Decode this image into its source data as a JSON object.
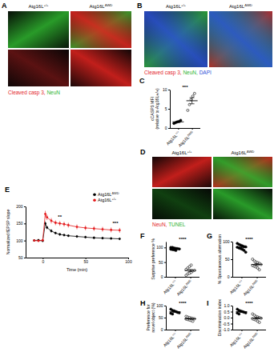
{
  "image_panels": [
    {
      "label": "A",
      "columns": [
        "Atg16L+/+",
        "Atg16LΔWD"
      ],
      "rows": 2,
      "caption": [
        {
          "text": "Cleaved casp 3, ",
          "color": "#e3231f"
        },
        {
          "text": "NeuN",
          "color": "#2fb52f"
        }
      ]
    },
    {
      "label": "B",
      "columns": [
        "Atg16L+/+",
        "Atg16LΔWD"
      ],
      "rows": 1,
      "caption": [
        {
          "text": "Cleaved casp 3, ",
          "color": "#e3231f"
        },
        {
          "text": "NeuN, ",
          "color": "#2fb52f"
        },
        {
          "text": "DAPI",
          "color": "#2b4fd8"
        }
      ]
    },
    {
      "label": "D",
      "columns": [
        "Atg16L+/+",
        "Atg16LΔWD"
      ],
      "rows": 2,
      "caption": [
        {
          "text": "NeuN, ",
          "color": "#e3231f"
        },
        {
          "text": "TUNEL",
          "color": "#2fb52f"
        }
      ]
    }
  ],
  "chart_data": [
    {
      "title": "C",
      "type": "dot",
      "ylabel": [
        "cCASP3 MFI",
        "(relative to Atg16L+/+)"
      ],
      "ylim": [
        0,
        10
      ],
      "yticks": [
        0,
        5,
        10
      ],
      "annotation": "***",
      "series": [
        {
          "name": "Atg16L+/+",
          "color": "#000000",
          "marker": "filled",
          "values": [
            1.2,
            1.4,
            1.6,
            1.7,
            2.0
          ],
          "mean": 1.6,
          "error": 0.15
        },
        {
          "name": "Atg16LΔWD",
          "color": "#000000",
          "marker": "open",
          "values": [
            4.6,
            6.1,
            7.4,
            8.3,
            9.0
          ],
          "mean": 7.1,
          "error": 0.8
        }
      ]
    },
    {
      "title": "E",
      "type": "line",
      "xlabel": "Time (min)",
      "ylabel": "Normalized fEPSP slope",
      "xlim": [
        -20,
        100
      ],
      "xticks": [
        0,
        50,
        100
      ],
      "ylim": [
        50,
        200
      ],
      "yticks": [
        50,
        100,
        150,
        200
      ],
      "legend": "top-right",
      "marker": "circle",
      "x": [
        -10,
        -5,
        0,
        3,
        5,
        10,
        15,
        20,
        25,
        30,
        40,
        50,
        60,
        70,
        80,
        90
      ],
      "series": [
        {
          "name": "Atg16LΔWD",
          "color": "#000000",
          "values": [
            100,
            101,
            99,
            150,
            138,
            128,
            122,
            118,
            116,
            114,
            112,
            110,
            108,
            107,
            106,
            105
          ],
          "errors": [
            3,
            3,
            3,
            6,
            5,
            5,
            4,
            4,
            4,
            4,
            4,
            4,
            4,
            4,
            4,
            4
          ]
        },
        {
          "name": "Atg16L+/+",
          "color": "#e41a1c",
          "values": [
            100,
            99,
            101,
            178,
            168,
            158,
            152,
            150,
            148,
            145,
            140,
            137,
            135,
            133,
            131,
            130
          ],
          "errors": [
            3,
            3,
            3,
            9,
            8,
            8,
            7,
            7,
            7,
            7,
            7,
            7,
            7,
            7,
            7,
            7
          ]
        }
      ],
      "annotations": [
        {
          "text": "**",
          "x": 20,
          "y": 165
        },
        {
          "text": "***",
          "x": 85,
          "y": 145
        }
      ]
    },
    {
      "title": "F",
      "type": "dot",
      "ylabel": "Surprise preference %",
      "ylim": [
        0,
        120
      ],
      "yticks": [
        0,
        50,
        100
      ],
      "annotation": "****",
      "series": [
        {
          "name": "Atg16L+/+",
          "color": "#000000",
          "marker": "filled",
          "values": [
            100,
            100,
            98,
            97,
            96,
            95,
            94,
            93,
            92,
            90
          ],
          "mean": 95.5,
          "error": 1.0
        },
        {
          "name": "Atg16LΔWD",
          "color": "#000000",
          "marker": "open",
          "values": [
            5,
            10,
            12,
            15,
            20,
            22,
            25,
            30,
            35,
            40
          ],
          "mean": 21.4,
          "error": 3.5
        }
      ]
    },
    {
      "title": "G",
      "type": "dot",
      "ylabel": "% Spontaneous alternation",
      "ylim": [
        0,
        100
      ],
      "yticks": [
        0,
        50,
        100
      ],
      "annotation": "****",
      "series": [
        {
          "name": "Atg16L+/+",
          "color": "#000000",
          "marker": "filled",
          "values": [
            95,
            92,
            90,
            88,
            86,
            85,
            84,
            82,
            80,
            78,
            75,
            70
          ],
          "mean": 83.8,
          "error": 2.0
        },
        {
          "name": "Atg16LΔWD",
          "color": "#000000",
          "marker": "open",
          "values": [
            50,
            45,
            42,
            40,
            38,
            35,
            32,
            30,
            28,
            25,
            20
          ],
          "mean": 35.0,
          "error": 2.7
        }
      ]
    },
    {
      "title": "H",
      "type": "dot",
      "ylabel": [
        "Preference for",
        "novel object (%)"
      ],
      "ylim": [
        0,
        100
      ],
      "yticks": [
        0,
        50,
        100
      ],
      "annotation": "****",
      "series": [
        {
          "name": "Atg16L+/+",
          "color": "#000000",
          "marker": "filled",
          "values": [
            85,
            80,
            78,
            75,
            72,
            70,
            68,
            65
          ],
          "mean": 74.1,
          "error": 2.3
        },
        {
          "name": "Atg16LΔWD",
          "color": "#000000",
          "marker": "open",
          "values": [
            55,
            52,
            50,
            48,
            46,
            45,
            44,
            42,
            40,
            38,
            35
          ],
          "mean": 45.0,
          "error": 1.8
        }
      ]
    },
    {
      "title": "I",
      "type": "dot",
      "ylabel": "Discrimination index",
      "ylim": [
        -1,
        1
      ],
      "yticks": [
        {
          "value": -1,
          "label": "-1.0"
        },
        {
          "value": -0.5,
          "label": "-0.5"
        },
        {
          "value": 0,
          "label": "0.0"
        },
        {
          "value": 0.5,
          "label": "0.5"
        },
        {
          "value": 1,
          "label": "1.0"
        }
      ],
      "annotation": "****",
      "series": [
        {
          "name": "Atg16L+/+",
          "color": "#000000",
          "marker": "filled",
          "values": [
            0.7,
            0.6,
            0.55,
            0.5,
            0.45,
            0.4,
            0.38,
            0.3
          ],
          "mean": 0.49,
          "error": 0.05
        },
        {
          "name": "Atg16LΔWD",
          "color": "#000000",
          "marker": "open",
          "values": [
            0.3,
            0.2,
            0.1,
            0.05,
            0,
            -0.05,
            -0.1,
            -0.15,
            -0.2,
            -0.3,
            -0.4
          ],
          "mean": -0.05,
          "error": 0.06
        }
      ]
    }
  ]
}
